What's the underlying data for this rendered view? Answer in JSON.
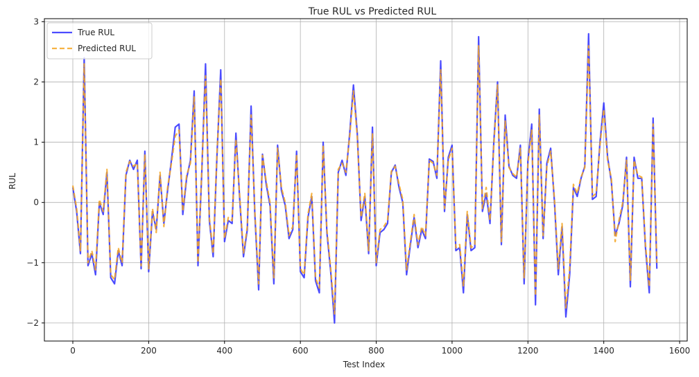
{
  "chart_data": {
    "type": "line",
    "title": "True RUL vs Predicted RUL",
    "xlabel": "Test Index",
    "ylabel": "RUL",
    "xlim": [
      -75,
      1620
    ],
    "ylim": [
      -2.3,
      3.05
    ],
    "x_ticks": [
      0,
      200,
      400,
      600,
      800,
      1000,
      1200,
      1400,
      1600
    ],
    "x_tick_labels": [
      "0",
      "200",
      "400",
      "600",
      "800",
      "1000",
      "1200",
      "1400",
      "1600"
    ],
    "y_ticks": [
      -2,
      -1,
      0,
      1,
      2,
      3
    ],
    "y_tick_labels": [
      "−2",
      "−1",
      "0",
      "1",
      "2",
      "3"
    ],
    "grid": true,
    "legend_position": "top-left",
    "x": [
      0,
      10,
      20,
      30,
      40,
      50,
      60,
      70,
      80,
      90,
      100,
      110,
      120,
      130,
      140,
      150,
      160,
      170,
      180,
      190,
      200,
      210,
      220,
      230,
      240,
      250,
      260,
      270,
      280,
      290,
      300,
      310,
      320,
      330,
      340,
      350,
      360,
      370,
      380,
      390,
      400,
      410,
      420,
      430,
      440,
      450,
      460,
      470,
      480,
      490,
      500,
      510,
      520,
      530,
      540,
      550,
      560,
      570,
      580,
      590,
      600,
      610,
      620,
      630,
      640,
      650,
      660,
      670,
      680,
      690,
      700,
      710,
      720,
      730,
      740,
      750,
      760,
      770,
      780,
      790,
      800,
      810,
      820,
      830,
      840,
      850,
      860,
      870,
      880,
      890,
      900,
      910,
      920,
      930,
      940,
      950,
      960,
      970,
      980,
      990,
      1000,
      1010,
      1020,
      1030,
      1040,
      1050,
      1060,
      1070,
      1080,
      1090,
      1100,
      1110,
      1120,
      1130,
      1140,
      1150,
      1160,
      1170,
      1180,
      1190,
      1200,
      1210,
      1220,
      1230,
      1240,
      1250,
      1260,
      1270,
      1280,
      1290,
      1300,
      1310,
      1320,
      1330,
      1340,
      1350,
      1360,
      1370,
      1380,
      1390,
      1400,
      1410,
      1420,
      1430,
      1440,
      1450,
      1460,
      1470,
      1480,
      1490,
      1500,
      1510,
      1520,
      1530,
      1540
    ],
    "series": [
      {
        "name": "True RUL",
        "color": "#2b2bff",
        "style": "solid",
        "values": [
          0.25,
          -0.15,
          -0.85,
          2.4,
          -1.05,
          -0.85,
          -1.2,
          0.0,
          -0.2,
          0.5,
          -1.25,
          -1.35,
          -0.8,
          -1.05,
          0.45,
          0.7,
          0.55,
          0.7,
          -1.1,
          0.85,
          -1.15,
          -0.15,
          -0.45,
          0.45,
          -0.35,
          0.2,
          0.7,
          1.25,
          1.3,
          -0.2,
          0.4,
          0.7,
          1.85,
          -1.05,
          0.5,
          2.3,
          -0.3,
          -0.9,
          0.75,
          2.2,
          -0.65,
          -0.3,
          -0.35,
          1.15,
          0.05,
          -0.9,
          -0.45,
          1.6,
          -0.2,
          -1.45,
          0.8,
          0.3,
          -0.05,
          -1.35,
          0.95,
          0.2,
          -0.05,
          -0.6,
          -0.45,
          0.85,
          -1.15,
          -1.25,
          -0.25,
          0.1,
          -1.3,
          -1.5,
          1.0,
          -0.5,
          -1.15,
          -2.0,
          0.5,
          0.7,
          0.45,
          1.15,
          1.95,
          1.15,
          -0.3,
          0.1,
          -0.85,
          1.25,
          -1.05,
          -0.5,
          -0.45,
          -0.35,
          0.5,
          0.62,
          0.25,
          0.0,
          -1.2,
          -0.7,
          -0.25,
          -0.75,
          -0.45,
          -0.6,
          0.72,
          0.68,
          0.4,
          2.35,
          -0.15,
          0.75,
          0.95,
          -0.8,
          -0.75,
          -1.5,
          -0.2,
          -0.8,
          -0.75,
          2.75,
          -0.15,
          0.15,
          -0.35,
          1.0,
          2.0,
          -0.7,
          1.45,
          0.6,
          0.45,
          0.4,
          0.95,
          -1.35,
          0.7,
          1.3,
          -1.7,
          1.55,
          -0.6,
          0.65,
          0.9,
          0.0,
          -1.2,
          -0.4,
          -1.9,
          -1.2,
          0.25,
          0.1,
          0.4,
          0.6,
          2.8,
          0.05,
          0.1,
          1.0,
          1.65,
          0.75,
          0.35,
          -0.55,
          -0.35,
          -0.05,
          0.75,
          -1.4,
          0.75,
          0.4,
          0.4,
          -0.75,
          -1.5,
          1.4,
          -1.1
        ]
      },
      {
        "name": "Predicted RUL",
        "color": "#f5a623",
        "style": "dashed",
        "values": [
          0.28,
          -0.1,
          -0.8,
          2.3,
          -1.0,
          -0.8,
          -1.12,
          0.05,
          -0.15,
          0.55,
          -1.2,
          -1.28,
          -0.75,
          -1.0,
          0.5,
          0.68,
          0.6,
          0.65,
          -1.05,
          0.8,
          -1.1,
          -0.1,
          -0.5,
          0.5,
          -0.4,
          0.25,
          0.65,
          1.1,
          1.2,
          -0.15,
          0.45,
          0.65,
          1.75,
          -1.0,
          0.55,
          2.1,
          -0.25,
          -0.85,
          0.8,
          2.05,
          -0.6,
          -0.25,
          -0.3,
          1.05,
          0.1,
          -0.85,
          -0.4,
          1.45,
          -0.15,
          -1.35,
          0.78,
          0.35,
          0.0,
          -1.25,
          0.9,
          0.25,
          0.0,
          -0.55,
          -0.4,
          0.8,
          -1.1,
          -1.2,
          -0.2,
          0.15,
          -1.25,
          -1.42,
          0.95,
          -0.45,
          -1.1,
          -1.85,
          0.55,
          0.65,
          0.5,
          1.1,
          1.85,
          1.1,
          -0.25,
          0.15,
          -0.8,
          1.15,
          -1.0,
          -0.45,
          -0.4,
          -0.3,
          0.52,
          0.6,
          0.3,
          0.05,
          -1.12,
          -0.65,
          -0.2,
          -0.7,
          -0.4,
          -0.55,
          0.7,
          0.65,
          0.45,
          2.2,
          -0.1,
          0.7,
          0.9,
          -0.75,
          -0.7,
          -1.4,
          -0.15,
          -0.75,
          -0.7,
          2.6,
          -0.1,
          0.25,
          -0.3,
          0.95,
          1.95,
          -0.65,
          1.35,
          0.58,
          0.48,
          0.42,
          0.9,
          -1.25,
          0.65,
          1.2,
          -1.55,
          1.45,
          -0.55,
          0.6,
          0.85,
          0.05,
          -1.1,
          -0.35,
          -1.75,
          -1.1,
          0.3,
          0.15,
          0.42,
          0.58,
          2.6,
          0.1,
          0.15,
          0.95,
          1.55,
          0.7,
          0.4,
          -0.65,
          -0.3,
          0.0,
          0.7,
          -1.3,
          0.7,
          0.45,
          0.42,
          -0.7,
          -1.4,
          1.3,
          -1.0
        ]
      }
    ]
  }
}
